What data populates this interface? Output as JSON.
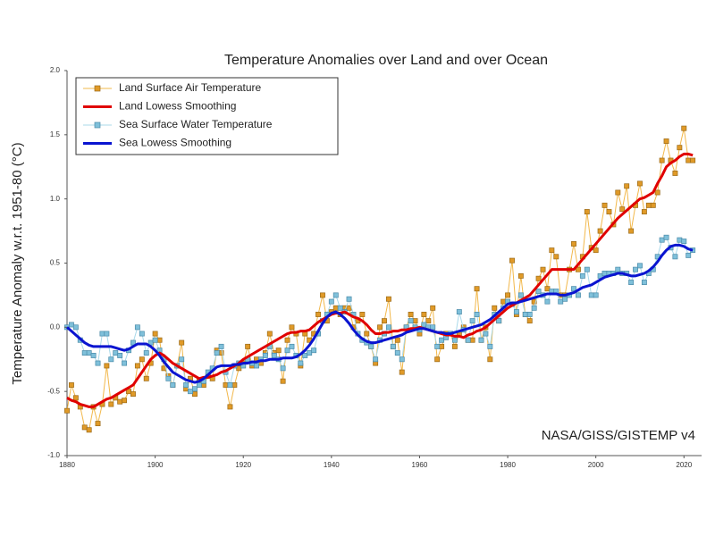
{
  "chart_data": {
    "type": "line",
    "title": "Temperature Anomalies over Land and over Ocean",
    "y_label": "Temperature Anomaly w.r.t. 1951-80 (°C)",
    "annotation": "NASA/GISS/GISTEMP v4",
    "legend": "top-left",
    "grid": false,
    "xlim": [
      1880,
      2024
    ],
    "xticks": [
      1880,
      1900,
      1920,
      1940,
      1960,
      1980,
      2000,
      2020
    ],
    "ylim": [
      -1,
      2
    ],
    "yticks": [
      {
        "value": -1,
        "label": "-1.0"
      },
      {
        "value": -0.5,
        "label": "-0.5"
      },
      {
        "value": 0,
        "label": "0.0"
      },
      {
        "value": 0.5,
        "label": "0.5"
      },
      {
        "value": 1,
        "label": "1.0"
      },
      {
        "value": 1.5,
        "label": "1.5"
      },
      {
        "value": 2,
        "label": "2.0"
      }
    ],
    "x": [
      1880,
      1881,
      1882,
      1883,
      1884,
      1885,
      1886,
      1887,
      1888,
      1889,
      1890,
      1891,
      1892,
      1893,
      1894,
      1895,
      1896,
      1897,
      1898,
      1899,
      1900,
      1901,
      1902,
      1903,
      1904,
      1905,
      1906,
      1907,
      1908,
      1909,
      1910,
      1911,
      1912,
      1913,
      1914,
      1915,
      1916,
      1917,
      1918,
      1919,
      1920,
      1921,
      1922,
      1923,
      1924,
      1925,
      1926,
      1927,
      1928,
      1929,
      1930,
      1931,
      1932,
      1933,
      1934,
      1935,
      1936,
      1937,
      1938,
      1939,
      1940,
      1941,
      1942,
      1943,
      1944,
      1945,
      1946,
      1947,
      1948,
      1949,
      1950,
      1951,
      1952,
      1953,
      1954,
      1955,
      1956,
      1957,
      1958,
      1959,
      1960,
      1961,
      1962,
      1963,
      1964,
      1965,
      1966,
      1967,
      1968,
      1969,
      1970,
      1971,
      1972,
      1973,
      1974,
      1975,
      1976,
      1977,
      1978,
      1979,
      1980,
      1981,
      1982,
      1983,
      1984,
      1985,
      1986,
      1987,
      1988,
      1989,
      1990,
      1991,
      1992,
      1993,
      1994,
      1995,
      1996,
      1997,
      1998,
      1999,
      2000,
      2001,
      2002,
      2003,
      2004,
      2005,
      2006,
      2007,
      2008,
      2009,
      2010,
      2011,
      2012,
      2013,
      2014,
      2015,
      2016,
      2017,
      2018,
      2019,
      2020,
      2021,
      2022
    ],
    "series": [
      {
        "name": "Land Surface Air Temperature",
        "color": "#f2b84b",
        "marker": "square",
        "marker_color": "#e09a28",
        "values": [
          -0.65,
          -0.45,
          -0.55,
          -0.62,
          -0.78,
          -0.8,
          -0.62,
          -0.75,
          -0.6,
          -0.3,
          -0.6,
          -0.55,
          -0.58,
          -0.57,
          -0.5,
          -0.52,
          -0.3,
          -0.25,
          -0.4,
          -0.28,
          -0.05,
          -0.1,
          -0.32,
          -0.38,
          -0.45,
          -0.3,
          -0.12,
          -0.48,
          -0.4,
          -0.52,
          -0.42,
          -0.45,
          -0.38,
          -0.4,
          -0.18,
          -0.2,
          -0.45,
          -0.62,
          -0.45,
          -0.32,
          -0.28,
          -0.15,
          -0.3,
          -0.25,
          -0.28,
          -0.2,
          -0.05,
          -0.2,
          -0.18,
          -0.42,
          -0.1,
          0.0,
          -0.05,
          -0.3,
          -0.05,
          -0.1,
          -0.05,
          0.1,
          0.25,
          0.05,
          0.12,
          0.15,
          0.1,
          0.15,
          0.15,
          0.0,
          0.05,
          0.1,
          -0.05,
          -0.15,
          -0.28,
          0.0,
          0.05,
          0.22,
          -0.15,
          -0.1,
          -0.35,
          0.0,
          0.1,
          0.05,
          -0.05,
          0.1,
          0.05,
          0.15,
          -0.25,
          -0.15,
          -0.05,
          -0.05,
          -0.15,
          -0.05,
          0.0,
          -0.1,
          -0.1,
          0.3,
          -0.1,
          0.0,
          -0.25,
          0.15,
          0.05,
          0.2,
          0.25,
          0.52,
          0.1,
          0.4,
          0.1,
          0.05,
          0.2,
          0.38,
          0.45,
          0.3,
          0.6,
          0.55,
          0.25,
          0.25,
          0.45,
          0.65,
          0.45,
          0.55,
          0.9,
          0.62,
          0.6,
          0.75,
          0.95,
          0.9,
          0.8,
          1.05,
          0.92,
          1.1,
          0.75,
          0.95,
          1.12,
          0.9,
          0.95,
          0.95,
          1.05,
          1.3,
          1.45,
          1.3,
          1.2,
          1.4,
          1.55,
          1.3,
          1.3
        ]
      },
      {
        "name": "Land Lowess Smoothing",
        "color": "#e00000",
        "values": [
          -0.55,
          -0.57,
          -0.58,
          -0.6,
          -0.61,
          -0.62,
          -0.62,
          -0.6,
          -0.58,
          -0.56,
          -0.55,
          -0.53,
          -0.51,
          -0.49,
          -0.47,
          -0.45,
          -0.4,
          -0.35,
          -0.3,
          -0.25,
          -0.22,
          -0.2,
          -0.22,
          -0.25,
          -0.28,
          -0.3,
          -0.32,
          -0.34,
          -0.36,
          -0.38,
          -0.4,
          -0.39,
          -0.39,
          -0.38,
          -0.37,
          -0.35,
          -0.34,
          -0.32,
          -0.3,
          -0.28,
          -0.25,
          -0.23,
          -0.21,
          -0.19,
          -0.17,
          -0.15,
          -0.13,
          -0.11,
          -0.09,
          -0.07,
          -0.05,
          -0.04,
          -0.04,
          -0.03,
          -0.03,
          -0.02,
          0.01,
          0.04,
          0.06,
          0.08,
          0.1,
          0.11,
          0.11,
          0.12,
          0.1,
          0.08,
          0.07,
          0.05,
          0.02,
          -0.02,
          -0.05,
          -0.05,
          -0.04,
          -0.04,
          -0.03,
          -0.03,
          -0.02,
          -0.02,
          -0.01,
          -0.01,
          0.0,
          -0.01,
          -0.02,
          -0.03,
          -0.04,
          -0.05,
          -0.06,
          -0.06,
          -0.07,
          -0.07,
          -0.08,
          -0.06,
          -0.05,
          -0.03,
          -0.02,
          0.0,
          0.03,
          0.06,
          0.09,
          0.12,
          0.15,
          0.17,
          0.19,
          0.21,
          0.23,
          0.25,
          0.29,
          0.33,
          0.37,
          0.41,
          0.45,
          0.45,
          0.45,
          0.45,
          0.45,
          0.45,
          0.49,
          0.53,
          0.57,
          0.61,
          0.65,
          0.69,
          0.73,
          0.77,
          0.81,
          0.85,
          0.88,
          0.91,
          0.94,
          0.97,
          1.0,
          1.01,
          1.03,
          1.05,
          1.12,
          1.18,
          1.25,
          1.28,
          1.3,
          1.33,
          1.35,
          1.35,
          1.34
        ]
      },
      {
        "name": "Sea Surface Water Temperature",
        "color": "#a9d9ea",
        "marker": "square",
        "marker_color": "#7fc0da",
        "values": [
          0.0,
          0.02,
          0.0,
          -0.1,
          -0.2,
          -0.2,
          -0.22,
          -0.28,
          -0.05,
          -0.05,
          -0.25,
          -0.2,
          -0.22,
          -0.28,
          -0.18,
          -0.12,
          0.0,
          -0.05,
          -0.2,
          -0.12,
          -0.1,
          -0.18,
          -0.25,
          -0.4,
          -0.45,
          -0.3,
          -0.25,
          -0.45,
          -0.5,
          -0.48,
          -0.45,
          -0.42,
          -0.35,
          -0.32,
          -0.2,
          -0.15,
          -0.35,
          -0.45,
          -0.3,
          -0.28,
          -0.3,
          -0.25,
          -0.28,
          -0.3,
          -0.25,
          -0.22,
          -0.15,
          -0.22,
          -0.25,
          -0.32,
          -0.18,
          -0.15,
          -0.22,
          -0.28,
          -0.22,
          -0.2,
          -0.18,
          -0.05,
          0.05,
          0.1,
          0.2,
          0.25,
          0.15,
          0.12,
          0.22,
          0.1,
          -0.05,
          -0.1,
          -0.12,
          -0.15,
          -0.25,
          -0.1,
          -0.05,
          0.0,
          -0.15,
          -0.2,
          -0.25,
          0.0,
          0.05,
          0.0,
          -0.02,
          0.02,
          0.0,
          0.0,
          -0.15,
          -0.1,
          -0.08,
          -0.05,
          -0.1,
          0.12,
          -0.02,
          -0.1,
          0.05,
          0.1,
          -0.1,
          -0.05,
          -0.15,
          0.1,
          0.05,
          0.15,
          0.2,
          0.18,
          0.12,
          0.25,
          0.1,
          0.1,
          0.15,
          0.28,
          0.25,
          0.2,
          0.28,
          0.28,
          0.2,
          0.22,
          0.25,
          0.3,
          0.25,
          0.4,
          0.45,
          0.25,
          0.25,
          0.4,
          0.42,
          0.42,
          0.42,
          0.45,
          0.42,
          0.42,
          0.35,
          0.45,
          0.48,
          0.35,
          0.42,
          0.45,
          0.55,
          0.68,
          0.7,
          0.62,
          0.55,
          0.68,
          0.67,
          0.56,
          0.6
        ]
      },
      {
        "name": "Sea Lowess Smoothing",
        "color": "#0a14d0",
        "values": [
          0.0,
          -0.03,
          -0.06,
          -0.09,
          -0.12,
          -0.14,
          -0.15,
          -0.15,
          -0.15,
          -0.15,
          -0.15,
          -0.16,
          -0.17,
          -0.18,
          -0.17,
          -0.15,
          -0.13,
          -0.13,
          -0.13,
          -0.15,
          -0.18,
          -0.22,
          -0.27,
          -0.31,
          -0.35,
          -0.37,
          -0.39,
          -0.41,
          -0.42,
          -0.43,
          -0.42,
          -0.4,
          -0.37,
          -0.34,
          -0.31,
          -0.3,
          -0.3,
          -0.3,
          -0.29,
          -0.29,
          -0.28,
          -0.28,
          -0.27,
          -0.27,
          -0.26,
          -0.26,
          -0.25,
          -0.25,
          -0.25,
          -0.24,
          -0.24,
          -0.24,
          -0.23,
          -0.21,
          -0.18,
          -0.14,
          -0.09,
          -0.03,
          0.03,
          0.08,
          0.11,
          0.12,
          0.1,
          0.07,
          0.03,
          -0.02,
          -0.06,
          -0.09,
          -0.11,
          -0.12,
          -0.12,
          -0.11,
          -0.1,
          -0.09,
          -0.08,
          -0.07,
          -0.06,
          -0.04,
          -0.03,
          -0.02,
          -0.01,
          -0.01,
          -0.02,
          -0.03,
          -0.04,
          -0.04,
          -0.05,
          -0.05,
          -0.04,
          -0.03,
          -0.02,
          -0.01,
          0.0,
          0.01,
          0.02,
          0.04,
          0.06,
          0.09,
          0.12,
          0.15,
          0.18,
          0.19,
          0.19,
          0.2,
          0.21,
          0.22,
          0.23,
          0.24,
          0.25,
          0.26,
          0.26,
          0.26,
          0.25,
          0.25,
          0.26,
          0.27,
          0.29,
          0.31,
          0.32,
          0.33,
          0.35,
          0.37,
          0.39,
          0.4,
          0.41,
          0.42,
          0.42,
          0.41,
          0.4,
          0.4,
          0.41,
          0.42,
          0.44,
          0.47,
          0.51,
          0.56,
          0.6,
          0.63,
          0.64,
          0.64,
          0.63,
          0.61,
          0.6
        ]
      }
    ]
  }
}
